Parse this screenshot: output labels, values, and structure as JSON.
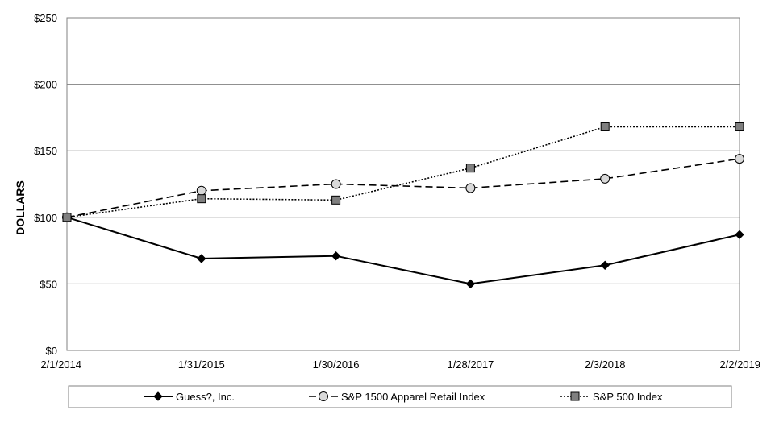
{
  "chart_data": {
    "type": "line",
    "title": "",
    "xlabel": "",
    "ylabel": "DOLLARS",
    "x": [
      "2/1/2014",
      "1/31/2015",
      "1/30/2016",
      "1/28/2017",
      "2/3/2018",
      "2/2/2019"
    ],
    "ylim": [
      0,
      250
    ],
    "yticks": [
      "$0",
      "$50",
      "$100",
      "$150",
      "$200",
      "$250"
    ],
    "ytick_values": [
      0,
      50,
      100,
      150,
      200,
      250
    ],
    "grid": "horizontal",
    "legend_position": "bottom",
    "series": [
      {
        "name": "Guess?, Inc.",
        "values": [
          100,
          69,
          71,
          50,
          64,
          87
        ],
        "line_style": "solid",
        "marker": "diamond",
        "color": "#000000"
      },
      {
        "name": "S&P 1500 Apparel Retail Index",
        "values": [
          100,
          120,
          125,
          122,
          129,
          144
        ],
        "line_style": "dashed",
        "marker": "circle",
        "color": "#000000",
        "marker_fill": "#d9d9d9"
      },
      {
        "name": "S&P 500 Index",
        "values": [
          100,
          114,
          113,
          137,
          168,
          168
        ],
        "line_style": "dotted",
        "marker": "square",
        "color": "#000000",
        "marker_fill": "#7f7f7f"
      }
    ]
  }
}
